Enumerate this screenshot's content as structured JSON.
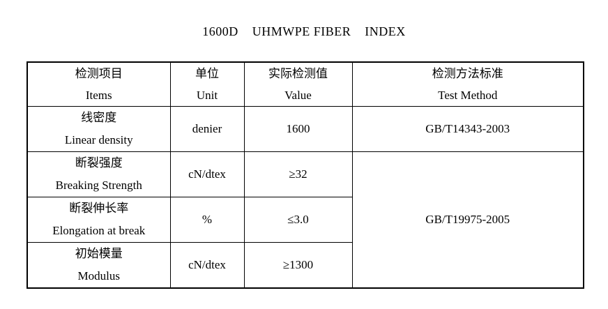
{
  "title": "1600D    UHMWPE FIBER    INDEX",
  "table": {
    "headers": [
      {
        "zh": "检测项目",
        "en": "Items"
      },
      {
        "zh": "单位",
        "en": "Unit"
      },
      {
        "zh": "实际检测值",
        "en": "Value"
      },
      {
        "zh": "检测方法标准",
        "en": "Test Method"
      }
    ],
    "rows": [
      {
        "item_zh": "线密度",
        "item_en": "Linear density",
        "unit": "denier",
        "value": "1600",
        "method": "GB/T14343-2003"
      },
      {
        "item_zh": "断裂强度",
        "item_en": "Breaking Strength",
        "unit": "cN/dtex",
        "value": "≥32",
        "method": "GB/T19975-2005"
      },
      {
        "item_zh": "断裂伸长率",
        "item_en": "Elongation at break",
        "unit": "%",
        "value": "≤3.0"
      },
      {
        "item_zh": "初始模量",
        "item_en": "Modulus",
        "unit": "cN/dtex",
        "value": "≥1300"
      }
    ]
  },
  "colors": {
    "text": "#000000",
    "border": "#000000",
    "background": "#ffffff"
  }
}
